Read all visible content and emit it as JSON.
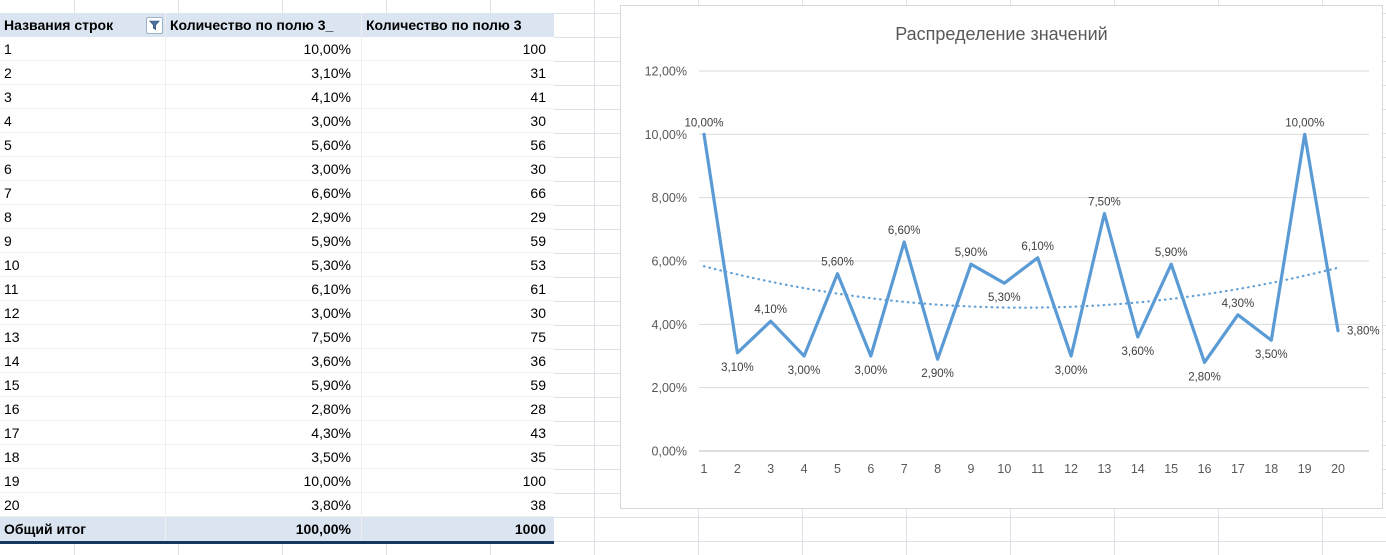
{
  "table": {
    "headers": [
      "Названия строк",
      "Количество по полю 3_",
      "Количество по полю 3"
    ],
    "rows": [
      [
        "1",
        "10,00%",
        "100"
      ],
      [
        "2",
        "3,10%",
        "31"
      ],
      [
        "3",
        "4,10%",
        "41"
      ],
      [
        "4",
        "3,00%",
        "30"
      ],
      [
        "5",
        "5,60%",
        "56"
      ],
      [
        "6",
        "3,00%",
        "30"
      ],
      [
        "7",
        "6,60%",
        "66"
      ],
      [
        "8",
        "2,90%",
        "29"
      ],
      [
        "9",
        "5,90%",
        "59"
      ],
      [
        "10",
        "5,30%",
        "53"
      ],
      [
        "11",
        "6,10%",
        "61"
      ],
      [
        "12",
        "3,00%",
        "30"
      ],
      [
        "13",
        "7,50%",
        "75"
      ],
      [
        "14",
        "3,60%",
        "36"
      ],
      [
        "15",
        "5,90%",
        "59"
      ],
      [
        "16",
        "2,80%",
        "28"
      ],
      [
        "17",
        "4,30%",
        "43"
      ],
      [
        "18",
        "3,50%",
        "35"
      ],
      [
        "19",
        "10,00%",
        "100"
      ],
      [
        "20",
        "3,80%",
        "38"
      ]
    ],
    "total": [
      "Общий итог",
      "100,00%",
      "1000"
    ]
  },
  "chart_data": {
    "type": "line",
    "title": "Распределение значений",
    "categories": [
      "1",
      "2",
      "3",
      "4",
      "5",
      "6",
      "7",
      "8",
      "9",
      "10",
      "11",
      "12",
      "13",
      "14",
      "15",
      "16",
      "17",
      "18",
      "19",
      "20"
    ],
    "values": [
      10,
      3.1,
      4.1,
      3,
      5.6,
      3,
      6.6,
      2.9,
      5.9,
      5.3,
      6.1,
      3,
      7.5,
      3.6,
      5.9,
      2.8,
      4.3,
      3.5,
      10,
      3.8
    ],
    "point_labels": [
      "10,00%",
      "3,10%",
      "4,10%",
      "3,00%",
      "5,60%",
      "3,00%",
      "6,60%",
      "2,90%",
      "5,90%",
      "5,30%",
      "6,10%",
      "3,00%",
      "7,50%",
      "3,60%",
      "5,90%",
      "2,80%",
      "4,30%",
      "3,50%",
      "10,00%",
      "3,80%"
    ],
    "label_positions": [
      "above",
      "below",
      "above",
      "below",
      "above",
      "below",
      "above",
      "below",
      "above",
      "below",
      "above",
      "below",
      "above",
      "below",
      "above",
      "below",
      "above",
      "below",
      "above",
      "right"
    ],
    "yticks": [
      "12,00%",
      "10,00%",
      "8,00%",
      "6,00%",
      "4,00%",
      "2,00%",
      "0,00%"
    ],
    "ylim": [
      0,
      12
    ],
    "xlabel": "",
    "ylabel": "",
    "grid": "horizontal",
    "legend": "none",
    "line_color": "#5b9bd5",
    "trendline": {
      "type": "polynomial",
      "order": 2,
      "style": "dotted",
      "color": "#5b9bd5"
    }
  },
  "colors": {
    "pivot_header_bg": "#dbe5f1",
    "pivot_total_bg": "#dbe5f1",
    "pivot_border_dark": "#17375e",
    "gridline": "#d9d9d9",
    "axis_line": "#bfbfbf",
    "axis_text": "#595959",
    "label_text": "#404040"
  }
}
